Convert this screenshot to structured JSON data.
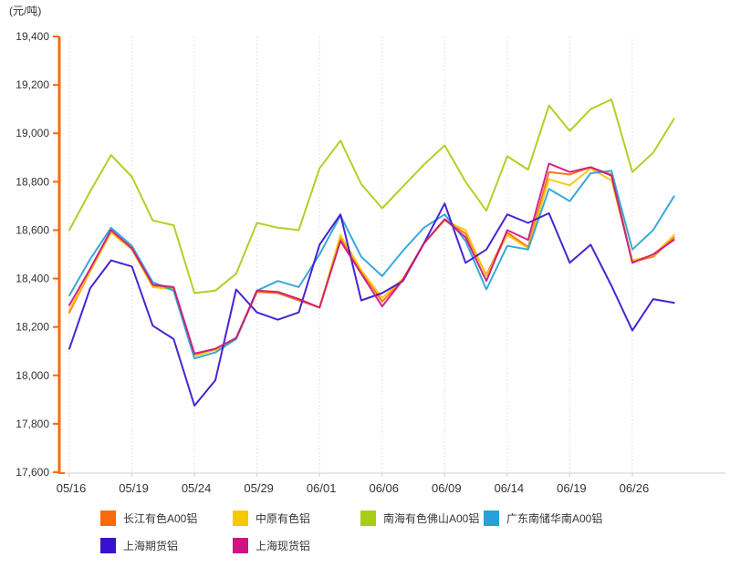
{
  "chart": {
    "unit_label": "(元/吨)",
    "axis_color": "#f96a0c",
    "baseline_color": "#cccccc",
    "gridline_color": "#dddddd",
    "tick_text_color": "#333333"
  },
  "chart_data": {
    "type": "line",
    "title": "",
    "ylabel": "(元/吨)",
    "ylim": [
      17600,
      19400
    ],
    "y_ticks": [
      17600,
      17800,
      18000,
      18200,
      18400,
      18600,
      18800,
      19000,
      19200,
      19400
    ],
    "x_tick_labels": [
      "05/16",
      "05/19",
      "05/24",
      "05/29",
      "06/01",
      "06/06",
      "06/09",
      "06/14",
      "06/19",
      "06/26"
    ],
    "x_tick_indices": [
      0,
      3,
      6,
      9,
      12,
      15,
      18,
      21,
      24,
      27
    ],
    "n_points": 30,
    "grid": "vertical-dotted",
    "legend_position": "bottom",
    "legend_rows": [
      [
        0,
        1,
        2,
        3
      ],
      [
        4,
        5
      ]
    ],
    "series": [
      {
        "name": "长江有色A00铝",
        "color": "#f96a0c",
        "values": [
          18260,
          18430,
          18595,
          18520,
          18370,
          18360,
          18085,
          18110,
          18150,
          18345,
          18340,
          18310,
          18280,
          18565,
          18430,
          18305,
          18395,
          18545,
          18645,
          18585,
          18415,
          18590,
          18530,
          18840,
          18830,
          18860,
          18830,
          18470,
          18490,
          18570
        ]
      },
      {
        "name": "中原有色铝",
        "color": "#f7c800",
        "values": [
          18270,
          18430,
          18590,
          18520,
          18365,
          18355,
          18080,
          18105,
          18150,
          18350,
          18345,
          18315,
          18280,
          18580,
          18435,
          18320,
          18400,
          18545,
          18640,
          18600,
          18410,
          18580,
          18525,
          18810,
          18785,
          18855,
          18805,
          18475,
          18495,
          18580
        ]
      },
      {
        "name": "南海有色佛山A00铝",
        "color": "#a6ce13",
        "values": [
          18600,
          18760,
          18910,
          18820,
          18640,
          18620,
          18340,
          18350,
          18420,
          18630,
          18610,
          18600,
          18855,
          18970,
          18790,
          18690,
          18780,
          18870,
          18950,
          18800,
          18680,
          18905,
          18850,
          19115,
          19010,
          19100,
          19140,
          18840,
          18920,
          19060
        ]
      },
      {
        "name": "广东南储华南A00铝",
        "color": "#27a2d8",
        "values": [
          18330,
          18480,
          18610,
          18535,
          18385,
          18350,
          18070,
          18095,
          18150,
          18350,
          18390,
          18365,
          18500,
          18660,
          18490,
          18410,
          18515,
          18610,
          18665,
          18555,
          18355,
          18535,
          18520,
          18770,
          18720,
          18835,
          18845,
          18520,
          18600,
          18740
        ]
      },
      {
        "name": "上海期货铝",
        "color": "#3a10d0",
        "values": [
          18110,
          18360,
          18475,
          18450,
          18205,
          18150,
          17875,
          17980,
          18355,
          18260,
          18230,
          18260,
          18540,
          18665,
          18310,
          18340,
          18390,
          18545,
          18710,
          18465,
          18520,
          18665,
          18630,
          18670,
          18465,
          18540,
          18370,
          18185,
          18315,
          18300
        ]
      },
      {
        "name": "上海现货铝",
        "color": "#cc1582",
        "values": [
          18290,
          18440,
          18600,
          18525,
          18375,
          18365,
          18090,
          18110,
          18155,
          18350,
          18345,
          18315,
          18280,
          18555,
          18420,
          18285,
          18395,
          18545,
          18645,
          18570,
          18390,
          18600,
          18560,
          18875,
          18840,
          18860,
          18825,
          18465,
          18500,
          18560
        ]
      }
    ]
  }
}
